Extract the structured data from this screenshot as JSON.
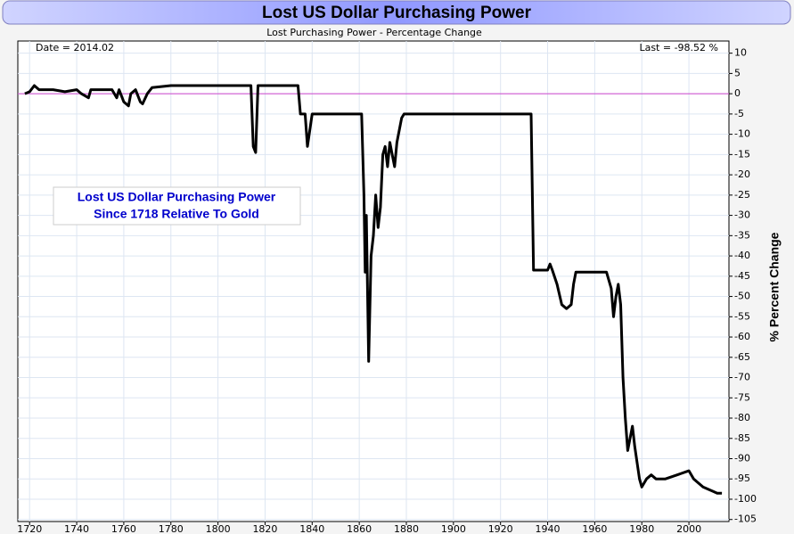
{
  "chart_data": {
    "type": "line",
    "title": "Lost US Dollar Purchasing Power",
    "subtitle": "Lost Purchasing Power - Percentage Change",
    "date_label": "Date = 2014.02",
    "last_label": "Last = -98.52 %",
    "annotation": [
      "Lost US Dollar Purchasing Power",
      "Since 1718 Relative To Gold"
    ],
    "y_label": "% Percent Change",
    "color": "#000000",
    "reference_line": {
      "value": 0,
      "color": "#cc44cc"
    },
    "grid": true,
    "xlim": [
      1715,
      2017
    ],
    "ylim": [
      -105.5,
      13
    ],
    "xticks": [
      1720,
      1740,
      1760,
      1780,
      1800,
      1820,
      1840,
      1860,
      1880,
      1900,
      1920,
      1940,
      1960,
      1980,
      2000
    ],
    "yticks": [
      10,
      5,
      0,
      -5,
      -10,
      -15,
      -20,
      -25,
      -30,
      -35,
      -40,
      -45,
      -50,
      -55,
      -60,
      -65,
      -70,
      -75,
      -80,
      -85,
      -90,
      -95,
      -100,
      -105
    ],
    "x": [
      1718,
      1720,
      1722,
      1724,
      1730,
      1735,
      1740,
      1742,
      1745,
      1746,
      1750,
      1755,
      1757,
      1758,
      1760,
      1762,
      1763,
      1765,
      1767,
      1768,
      1770,
      1772,
      1780,
      1790,
      1800,
      1814,
      1815,
      1816,
      1817,
      1830,
      1834,
      1835,
      1837,
      1838,
      1840,
      1850,
      1860,
      1861,
      1862,
      1862.5,
      1863,
      1864,
      1865,
      1866,
      1867,
      1868,
      1869,
      1870,
      1871,
      1872,
      1873,
      1874,
      1875,
      1876,
      1878,
      1879,
      1900,
      1933,
      1934,
      1940,
      1941,
      1942,
      1944,
      1946,
      1948,
      1950,
      1951,
      1952,
      1960,
      1965,
      1967,
      1968,
      1969,
      1970,
      1971,
      1972,
      1973,
      1974,
      1975,
      1976,
      1977,
      1979,
      1980,
      1982,
      1984,
      1986,
      1990,
      1995,
      2000,
      2002,
      2006,
      2010,
      2012,
      2014
    ],
    "values": [
      0,
      0.5,
      2,
      1,
      1,
      0.5,
      1,
      0,
      -1,
      1,
      1,
      1,
      -1,
      1,
      -2,
      -3,
      0,
      1,
      -2,
      -2.5,
      0,
      1.5,
      2,
      2,
      2,
      2,
      -13,
      -14.5,
      2,
      2,
      2,
      -5,
      -5,
      -13,
      -5,
      -5,
      -5,
      -5,
      -25,
      -44,
      -30,
      -66,
      -40,
      -35,
      -25,
      -33,
      -28,
      -15,
      -13,
      -18,
      -12,
      -15,
      -18,
      -12,
      -6,
      -5,
      -5,
      -5,
      -43.5,
      -43.5,
      -42,
      -43.5,
      -47,
      -52,
      -53,
      -52,
      -47,
      -44,
      -44,
      -44,
      -48,
      -55,
      -50,
      -47,
      -52,
      -70,
      -80,
      -88,
      -85,
      -82,
      -87,
      -95,
      -97,
      -95,
      -94,
      -95,
      -95,
      -94,
      -93,
      -95,
      -97,
      -98,
      -98.5,
      -98.52
    ]
  }
}
